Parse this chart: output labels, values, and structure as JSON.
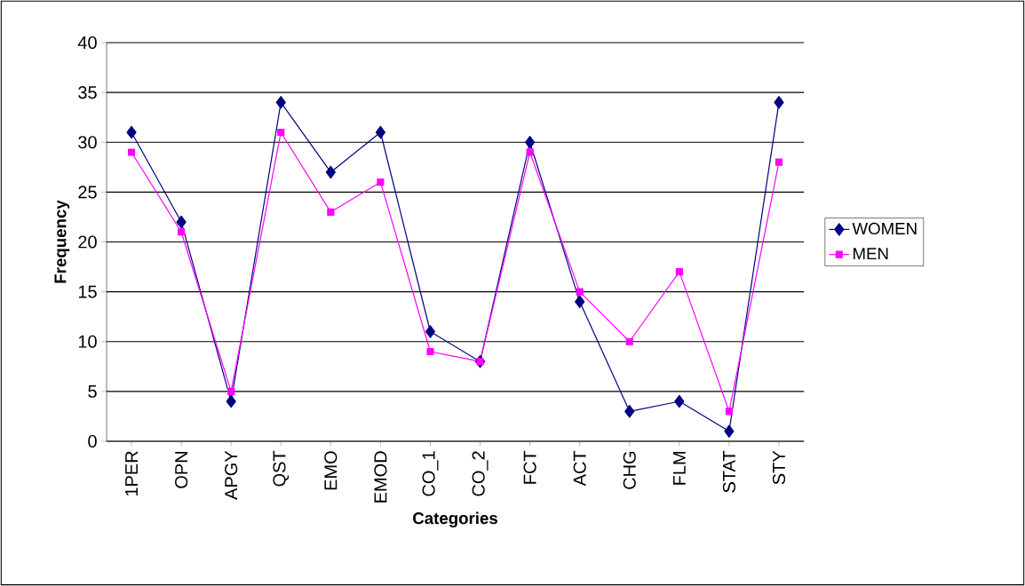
{
  "chart_data": {
    "type": "line",
    "xlabel": "Categories",
    "ylabel": "Frequency",
    "categories": [
      "1PER",
      "OPN",
      "APGY",
      "QST",
      "EMO",
      "EMOD",
      "CO_1",
      "CO_2",
      "FCT",
      "ACT",
      "CHG",
      "FLM",
      "STAT",
      "STY"
    ],
    "series": [
      {
        "name": "WOMEN",
        "color": "#000080",
        "marker": "diamond",
        "values": [
          31,
          22,
          4,
          34,
          27,
          31,
          11,
          8,
          30,
          14,
          3,
          4,
          1,
          34
        ]
      },
      {
        "name": "MEN",
        "color": "#ff00ff",
        "marker": "square",
        "values": [
          29,
          21,
          5,
          31,
          23,
          26,
          9,
          8,
          29,
          15,
          10,
          17,
          3,
          28
        ]
      }
    ],
    "ylim": [
      0,
      40
    ],
    "yticks": [
      0,
      5,
      10,
      15,
      20,
      25,
      30,
      35,
      40
    ],
    "grid": "y",
    "legend": "right",
    "line_style": "solid"
  }
}
